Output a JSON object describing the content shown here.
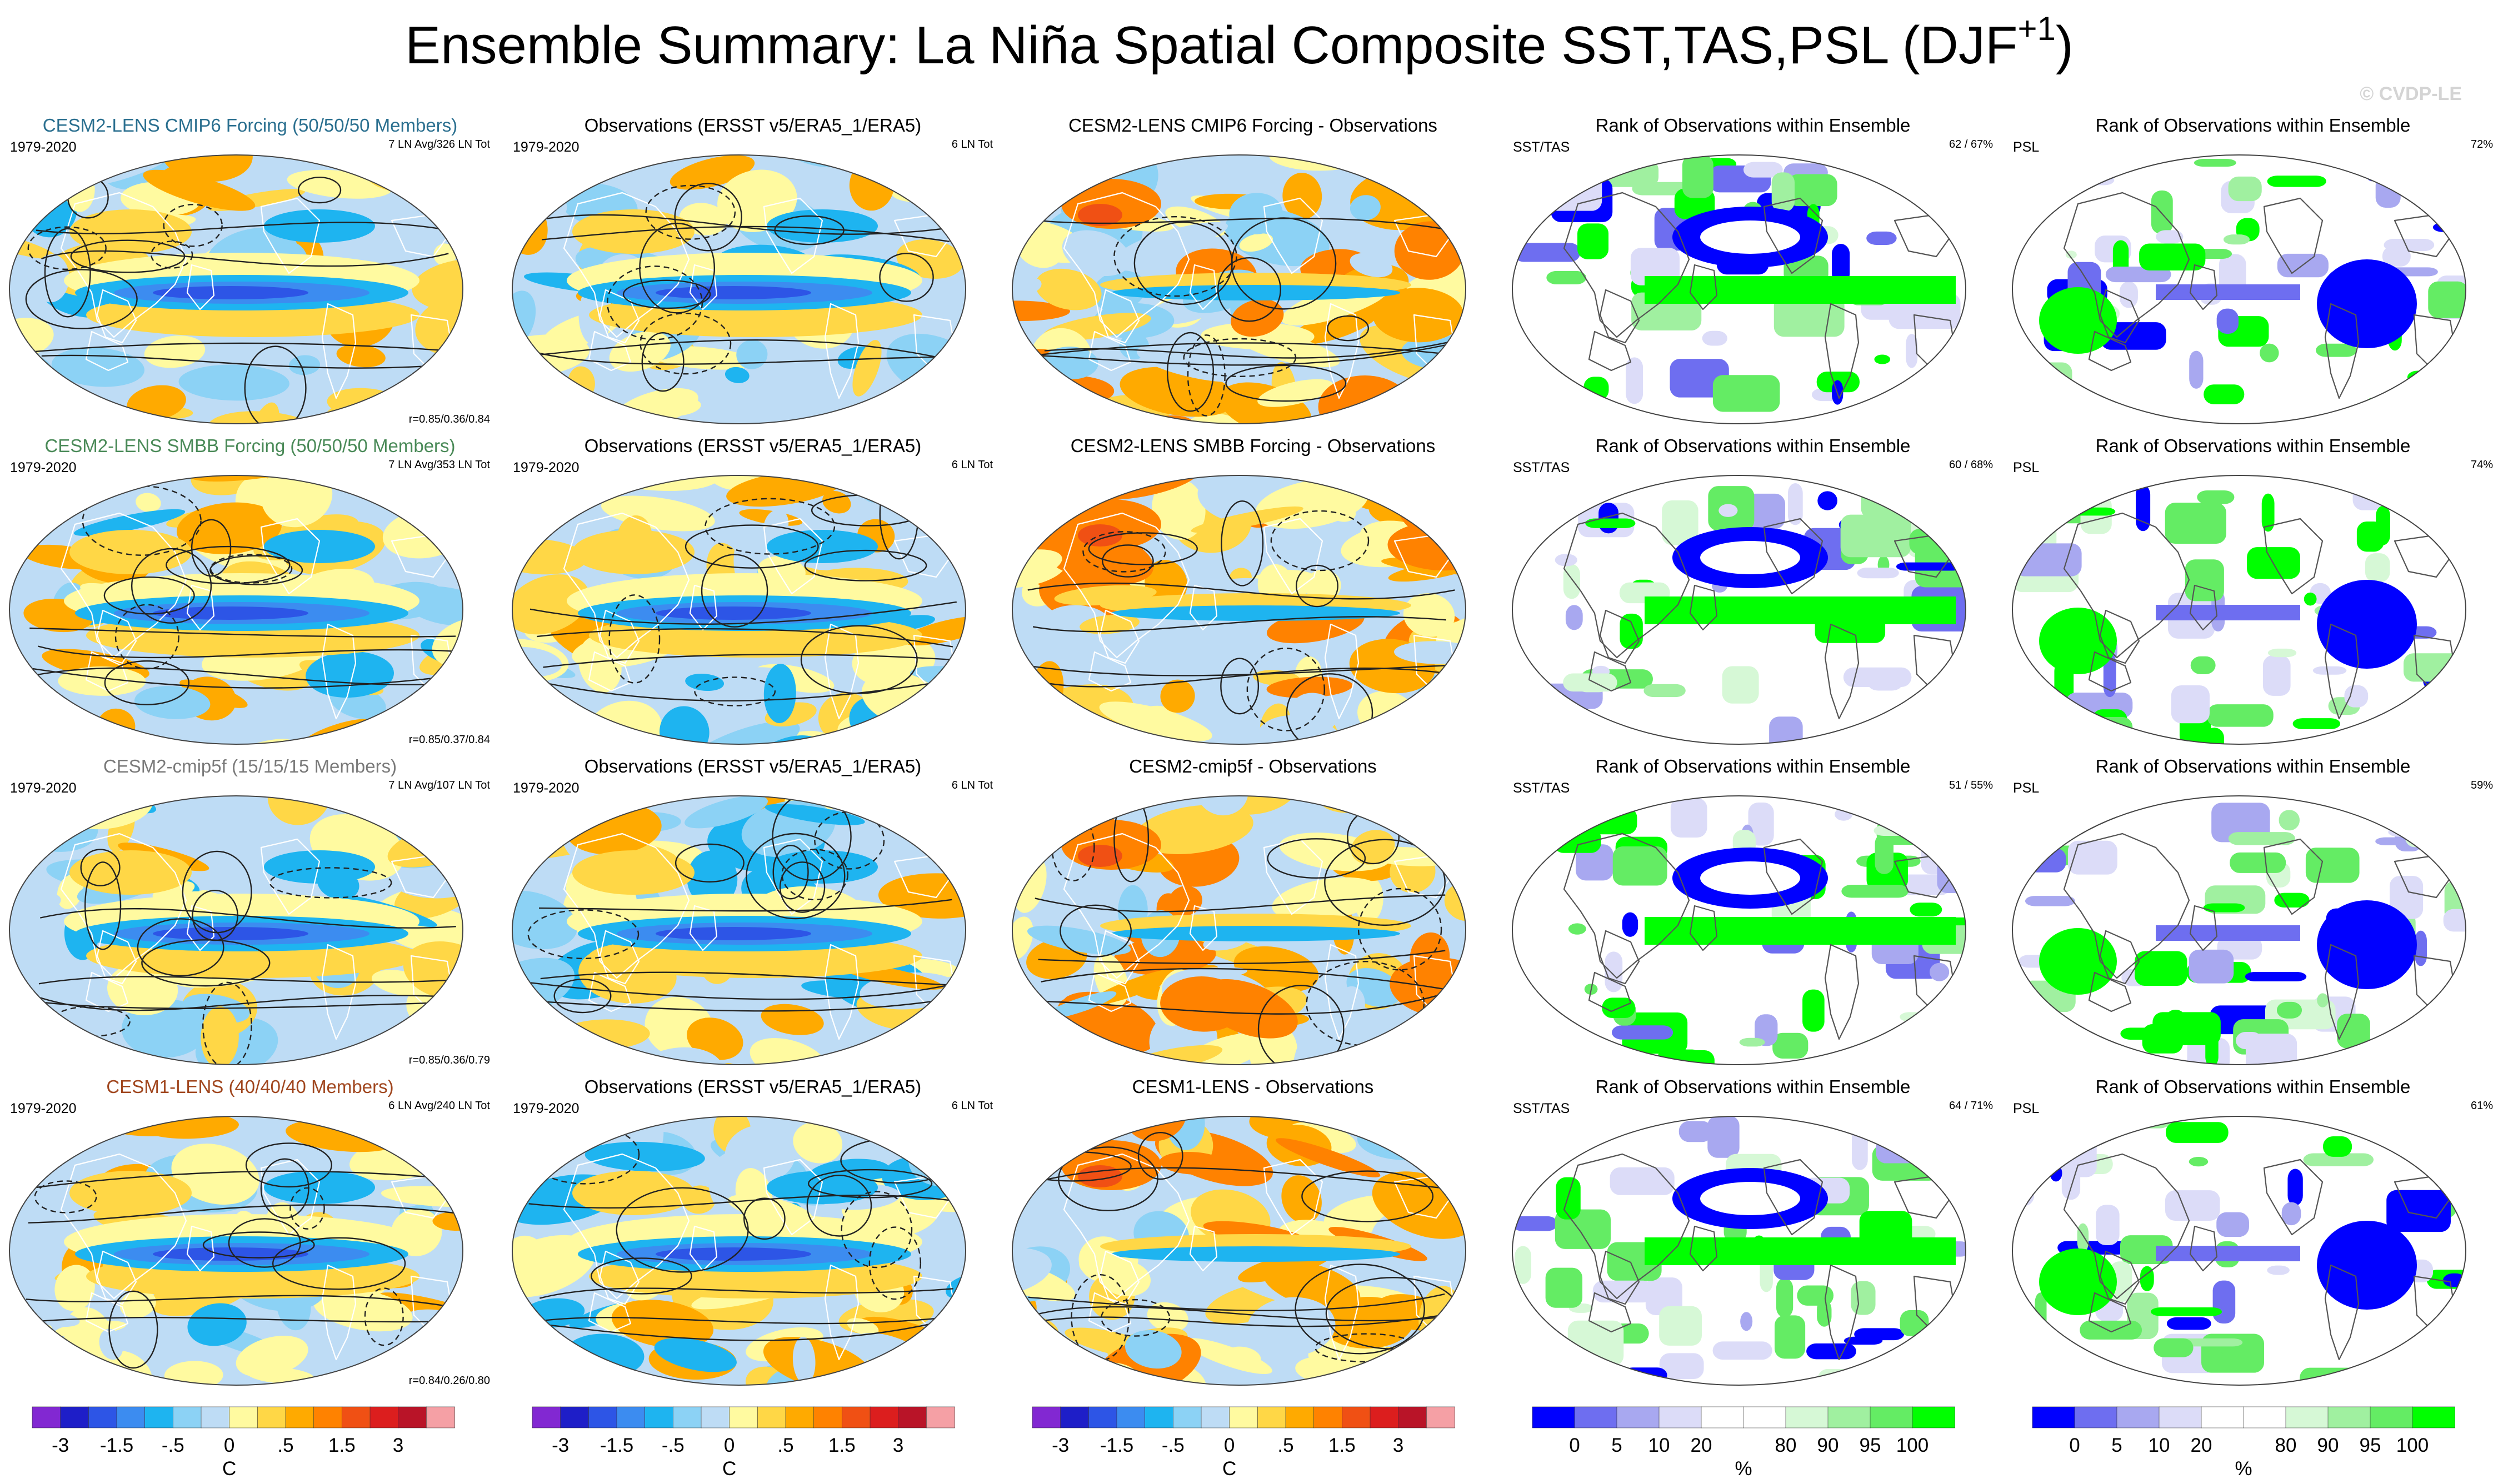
{
  "title": {
    "main": "Ensemble Summary: La Niña Spatial Composite SST,TAS,PSL (DJF",
    "sup": "+1",
    "end": ")"
  },
  "watermark": "© CVDP-LE",
  "colors": {
    "temp": [
      "#8228d2",
      "#1e1ec8",
      "#2d55e6",
      "#3c8cf0",
      "#1eb4f0",
      "#8cd2f5",
      "#bedcf5",
      "#fffaa0",
      "#ffd746",
      "#ffaa00",
      "#ff8200",
      "#f05014",
      "#dc1e1e",
      "#b91428",
      "#f5a0a5"
    ],
    "rank": [
      "#0000ff",
      "#6e6ef0",
      "#a8a8f0",
      "#dcdcf8",
      "#ffffff",
      "#ffffff",
      "#d6f8d6",
      "#a0f0a0",
      "#64ec64",
      "#00ff00"
    ]
  },
  "rows": [
    {
      "model": {
        "title": "CESM2-LENS CMIP6 Forcing (50/50/50 Members)",
        "title_color": "#2a6f8f",
        "years": "1979-2020",
        "ln": "7 LN Avg/326 LN Tot",
        "r": "r=0.85/0.36/0.84"
      },
      "obs": {
        "title": "Observations (ERSST v5/ERA5_1/ERA5)",
        "years": "1979-2020",
        "ln": "6 LN Tot"
      },
      "diff": {
        "title": "CESM2-LENS CMIP6 Forcing - Observations"
      },
      "rank_sst": {
        "title": "Rank of Observations within Ensemble",
        "label": "SST/TAS",
        "pct": "62 /  67%"
      },
      "rank_psl": {
        "title": "Rank of Observations within Ensemble",
        "label": "PSL",
        "pct": "72%"
      }
    },
    {
      "model": {
        "title": "CESM2-LENS SMBB Forcing (50/50/50 Members)",
        "title_color": "#4a8a58",
        "years": "1979-2020",
        "ln": "7 LN Avg/353 LN Tot",
        "r": "r=0.85/0.37/0.84"
      },
      "obs": {
        "title": "Observations (ERSST v5/ERA5_1/ERA5)",
        "years": "1979-2020",
        "ln": "6 LN Tot"
      },
      "diff": {
        "title": "CESM2-LENS SMBB Forcing - Observations"
      },
      "rank_sst": {
        "title": "Rank of Observations within Ensemble",
        "label": "SST/TAS",
        "pct": "60 /  68%"
      },
      "rank_psl": {
        "title": "Rank of Observations within Ensemble",
        "label": "PSL",
        "pct": "74%"
      }
    },
    {
      "model": {
        "title": "CESM2-cmip5f (15/15/15 Members)",
        "title_color": "#7a7a7a",
        "years": "1979-2020",
        "ln": "7 LN Avg/107 LN Tot",
        "r": "r=0.85/0.36/0.79"
      },
      "obs": {
        "title": "Observations (ERSST v5/ERA5_1/ERA5)",
        "years": "1979-2020",
        "ln": "6 LN Tot"
      },
      "diff": {
        "title": "CESM2-cmip5f - Observations"
      },
      "rank_sst": {
        "title": "Rank of Observations within Ensemble",
        "label": "SST/TAS",
        "pct": "51 /  55%"
      },
      "rank_psl": {
        "title": "Rank of Observations within Ensemble",
        "label": "PSL",
        "pct": "59%"
      }
    },
    {
      "model": {
        "title": "CESM1-LENS (40/40/40 Members)",
        "title_color": "#a0461e",
        "years": "1979-2020",
        "ln": "6 LN Avg/240 LN Tot",
        "r": "r=0.84/0.26/0.80"
      },
      "obs": {
        "title": "Observations (ERSST v5/ERA5_1/ERA5)",
        "years": "1979-2020",
        "ln": "6 LN Tot"
      },
      "diff": {
        "title": "CESM1-LENS - Observations"
      },
      "rank_sst": {
        "title": "Rank of Observations within Ensemble",
        "label": "SST/TAS",
        "pct": "64 /  71%"
      },
      "rank_psl": {
        "title": "Rank of Observations within Ensemble",
        "label": "PSL",
        "pct": "61%"
      }
    }
  ],
  "colorbars": {
    "temp": {
      "ticks": [
        "-3",
        "-1.5",
        "-.5",
        "0",
        ".5",
        "1.5",
        "3"
      ],
      "unit": "C"
    },
    "rank": {
      "ticks": [
        "0",
        "5",
        "10",
        "20",
        "80",
        "90",
        "95",
        "100"
      ],
      "unit": "%"
    }
  }
}
